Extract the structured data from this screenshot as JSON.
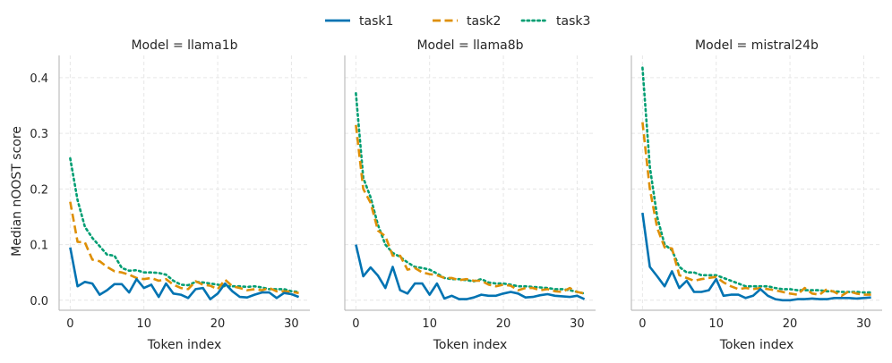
{
  "chart_data": {
    "type": "line",
    "ylabel": "Median nOOST score",
    "xlabel": "Token index",
    "xlim": [
      -1.5,
      32.5
    ],
    "ylim": [
      -0.018,
      0.44
    ],
    "xticks": [
      0,
      10,
      20,
      30
    ],
    "yticks": [
      0.0,
      0.1,
      0.2,
      0.3,
      0.4
    ],
    "ytick_labels": [
      "0.0",
      "0.1",
      "0.2",
      "0.3",
      "0.4"
    ],
    "grid": true,
    "legend": {
      "placement": "top-center",
      "entries": [
        {
          "name": "task1",
          "color": "#0173b2",
          "style": "solid"
        },
        {
          "name": "task2",
          "color": "#de8f05",
          "style": "dashed"
        },
        {
          "name": "task3",
          "color": "#029e73",
          "style": "dotted"
        }
      ]
    },
    "panels": [
      {
        "title": "Model = llama1b",
        "series": [
          {
            "name": "task1",
            "values": [
              0.095,
              0.025,
              0.033,
              0.03,
              0.01,
              0.018,
              0.029,
              0.029,
              0.014,
              0.038,
              0.022,
              0.028,
              0.006,
              0.03,
              0.012,
              0.01,
              0.004,
              0.02,
              0.022,
              0.002,
              0.012,
              0.03,
              0.016,
              0.006,
              0.005,
              0.01,
              0.014,
              0.014,
              0.004,
              0.013,
              0.011,
              0.006
            ]
          },
          {
            "name": "task2",
            "values": [
              0.177,
              0.105,
              0.104,
              0.073,
              0.07,
              0.06,
              0.052,
              0.05,
              0.046,
              0.04,
              0.038,
              0.04,
              0.035,
              0.038,
              0.028,
              0.022,
              0.02,
              0.034,
              0.028,
              0.026,
              0.02,
              0.037,
              0.025,
              0.022,
              0.018,
              0.02,
              0.018,
              0.022,
              0.016,
              0.016,
              0.015,
              0.013
            ]
          },
          {
            "name": "task3",
            "values": [
              0.255,
              0.18,
              0.132,
              0.112,
              0.097,
              0.082,
              0.08,
              0.058,
              0.053,
              0.054,
              0.05,
              0.05,
              0.049,
              0.046,
              0.035,
              0.028,
              0.027,
              0.033,
              0.032,
              0.03,
              0.028,
              0.025,
              0.025,
              0.025,
              0.024,
              0.025,
              0.023,
              0.02,
              0.02,
              0.02,
              0.016,
              0.015
            ]
          }
        ]
      },
      {
        "title": "Model = llama8b",
        "series": [
          {
            "name": "task1",
            "values": [
              0.1,
              0.043,
              0.059,
              0.044,
              0.022,
              0.06,
              0.018,
              0.012,
              0.03,
              0.03,
              0.01,
              0.03,
              0.003,
              0.008,
              0.002,
              0.002,
              0.005,
              0.01,
              0.008,
              0.008,
              0.012,
              0.015,
              0.012,
              0.005,
              0.006,
              0.009,
              0.011,
              0.008,
              0.007,
              0.006,
              0.008,
              0.002
            ]
          },
          {
            "name": "task2",
            "values": [
              0.315,
              0.2,
              0.175,
              0.125,
              0.115,
              0.08,
              0.08,
              0.055,
              0.058,
              0.05,
              0.047,
              0.045,
              0.04,
              0.04,
              0.036,
              0.038,
              0.035,
              0.035,
              0.028,
              0.025,
              0.028,
              0.026,
              0.018,
              0.022,
              0.022,
              0.018,
              0.02,
              0.016,
              0.015,
              0.022,
              0.015,
              0.012
            ]
          },
          {
            "name": "task3",
            "values": [
              0.372,
              0.22,
              0.185,
              0.135,
              0.1,
              0.085,
              0.078,
              0.068,
              0.06,
              0.058,
              0.055,
              0.048,
              0.04,
              0.038,
              0.038,
              0.036,
              0.034,
              0.038,
              0.032,
              0.03,
              0.03,
              0.028,
              0.025,
              0.025,
              0.024,
              0.023,
              0.022,
              0.02,
              0.02,
              0.018,
              0.015,
              0.012
            ]
          }
        ]
      },
      {
        "title": "Model = mistral24b",
        "series": [
          {
            "name": "task1",
            "values": [
              0.157,
              0.06,
              0.043,
              0.025,
              0.052,
              0.022,
              0.035,
              0.015,
              0.015,
              0.018,
              0.038,
              0.008,
              0.01,
              0.01,
              0.004,
              0.008,
              0.02,
              0.008,
              0.002,
              0.0,
              0.0,
              0.002,
              0.002,
              0.003,
              0.002,
              0.002,
              0.004,
              0.004,
              0.004,
              0.003,
              0.004,
              0.005
            ]
          },
          {
            "name": "task2",
            "values": [
              0.32,
              0.2,
              0.13,
              0.095,
              0.093,
              0.045,
              0.04,
              0.035,
              0.038,
              0.04,
              0.042,
              0.032,
              0.025,
              0.02,
              0.022,
              0.02,
              0.022,
              0.02,
              0.018,
              0.015,
              0.012,
              0.01,
              0.022,
              0.012,
              0.01,
              0.02,
              0.015,
              0.008,
              0.016,
              0.012,
              0.01,
              0.01
            ]
          },
          {
            "name": "task3",
            "values": [
              0.418,
              0.24,
              0.15,
              0.1,
              0.09,
              0.06,
              0.05,
              0.05,
              0.045,
              0.045,
              0.045,
              0.04,
              0.035,
              0.03,
              0.025,
              0.025,
              0.025,
              0.025,
              0.022,
              0.02,
              0.02,
              0.018,
              0.018,
              0.018,
              0.018,
              0.016,
              0.016,
              0.015,
              0.015,
              0.015,
              0.014,
              0.014
            ]
          }
        ]
      }
    ]
  }
}
